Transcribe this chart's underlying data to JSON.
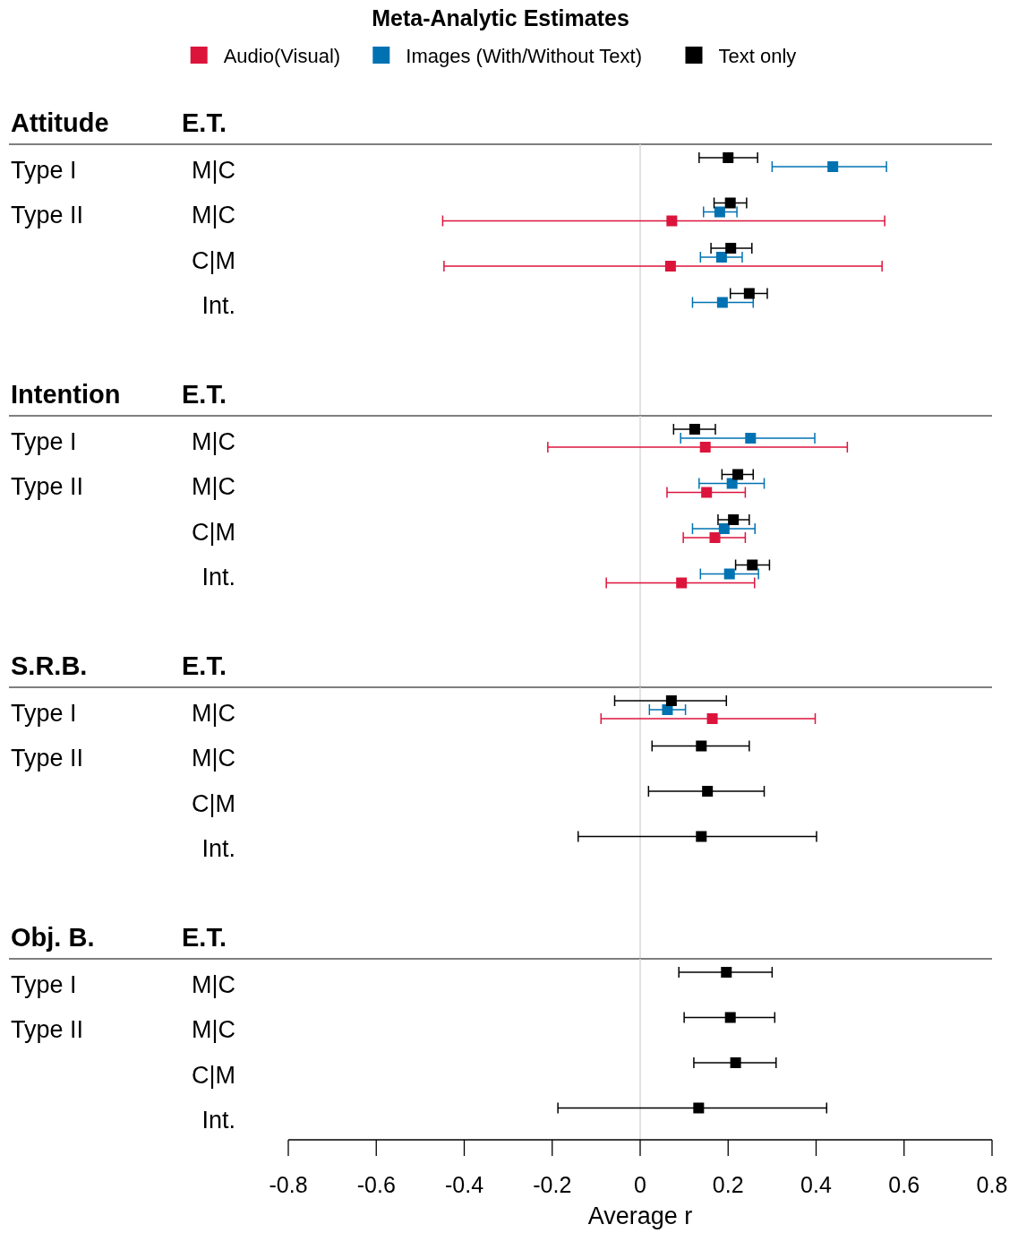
{
  "chart_data": [
    {
      "type": "scatter",
      "orientation": "horizontal",
      "title": "Meta-Analytic Estimates",
      "subtitle": "Attitude",
      "ylabel": "E.T.",
      "legend": "top",
      "marker": "square",
      "categories": [
        "M|C",
        "M|C",
        "C|M",
        "Int."
      ],
      "y2_categories": [
        "Type I",
        "Type II",
        null,
        null
      ],
      "xlim": [
        -0.8,
        0.8
      ],
      "tick_labels": "y",
      "ref_lines": [
        {
          "axis": "x",
          "value": 0,
          "color": "#d9d9d9"
        }
      ],
      "series": [
        {
          "name": "Audio(Visual)",
          "color": "#dc143c",
          "values": [
            null,
            0.072,
            0.069,
            null
          ],
          "errors": [
            null,
            [
              -0.449,
              0.556
            ],
            [
              -0.446,
              0.55
            ],
            null
          ]
        },
        {
          "name": "Images (With/Without Text)",
          "color": "#0072b2",
          "values": [
            0.438,
            0.181,
            0.185,
            0.187
          ],
          "errors": [
            [
              0.3,
              0.56
            ],
            [
              0.144,
              0.22
            ],
            [
              0.137,
              0.232
            ],
            [
              0.119,
              0.257
            ]
          ]
        },
        {
          "name": "Text only",
          "color": "#000000",
          "values": [
            0.2,
            0.205,
            0.206,
            0.248
          ],
          "errors": [
            [
              0.134,
              0.267
            ],
            [
              0.168,
              0.242
            ],
            [
              0.161,
              0.254
            ],
            [
              0.205,
              0.289
            ]
          ]
        }
      ]
    },
    {
      "type": "scatter",
      "orientation": "horizontal",
      "subtitle": "Intention",
      "ylabel": "E.T.",
      "marker": "square",
      "categories": [
        "M|C",
        "M|C",
        "C|M",
        "Int."
      ],
      "y2_categories": [
        "Type I",
        "Type II",
        null,
        null
      ],
      "xlim": [
        -0.8,
        0.8
      ],
      "tick_labels": "y",
      "ref_lines": [
        {
          "axis": "x",
          "value": 0,
          "color": "#d9d9d9"
        }
      ],
      "series": [
        {
          "color": "#dc143c",
          "values": [
            0.148,
            0.151,
            0.17,
            0.094
          ],
          "errors": [
            [
              -0.21,
              0.471
            ],
            [
              0.061,
              0.239
            ],
            [
              0.098,
              0.239
            ],
            [
              -0.077,
              0.26
            ]
          ]
        },
        {
          "color": "#0072b2",
          "values": [
            0.251,
            0.209,
            0.191,
            0.203
          ],
          "errors": [
            [
              0.092,
              0.397
            ],
            [
              0.134,
              0.282
            ],
            [
              0.119,
              0.261
            ],
            [
              0.137,
              0.269
            ]
          ]
        },
        {
          "color": "#000000",
          "values": [
            0.124,
            0.222,
            0.212,
            0.255
          ],
          "errors": [
            [
              0.076,
              0.171
            ],
            [
              0.186,
              0.257
            ],
            [
              0.177,
              0.248
            ],
            [
              0.217,
              0.294
            ]
          ]
        }
      ]
    },
    {
      "type": "scatter",
      "orientation": "horizontal",
      "subtitle": "S.R.B.",
      "ylabel": "E.T.",
      "marker": "square",
      "categories": [
        "M|C",
        "M|C",
        "C|M",
        "Int."
      ],
      "y2_categories": [
        "Type I",
        "Type II",
        null,
        null
      ],
      "xlim": [
        -0.8,
        0.8
      ],
      "tick_labels": "y",
      "ref_lines": [
        {
          "axis": "x",
          "value": 0,
          "color": "#d9d9d9"
        }
      ],
      "series": [
        {
          "color": "#dc143c",
          "values": [
            0.164,
            null,
            null,
            null
          ],
          "errors": [
            [
              -0.089,
              0.398
            ],
            null,
            null,
            null
          ]
        },
        {
          "color": "#0072b2",
          "values": [
            0.062,
            null,
            null,
            null
          ],
          "errors": [
            [
              0.021,
              0.103
            ],
            null,
            null,
            null
          ]
        },
        {
          "color": "#000000",
          "values": [
            0.071,
            0.139,
            0.153,
            0.139
          ],
          "errors": [
            [
              -0.058,
              0.196
            ],
            [
              0.027,
              0.248
            ],
            [
              0.019,
              0.282
            ],
            [
              -0.141,
              0.401
            ]
          ]
        }
      ]
    },
    {
      "type": "scatter",
      "orientation": "horizontal",
      "subtitle": "Obj. B.",
      "ylabel": "E.T.",
      "xlabel": "Average r",
      "marker": "square",
      "categories": [
        "M|C",
        "M|C",
        "C|M",
        "Int."
      ],
      "y2_categories": [
        "Type I",
        "Type II",
        null,
        null
      ],
      "xlim": [
        -0.8,
        0.8
      ],
      "xticks": [
        {
          "value": -0.8,
          "label": "-0.8"
        },
        {
          "value": -0.6,
          "label": "-0.6"
        },
        {
          "value": -0.4,
          "label": "-0.4"
        },
        {
          "value": -0.2,
          "label": "-0.2"
        },
        0,
        {
          "value": 0.2,
          "label": "0.2"
        },
        {
          "value": 0.4,
          "label": "0.4"
        },
        {
          "value": 0.6,
          "label": "0.6"
        },
        {
          "value": 0.8,
          "label": "0.8"
        }
      ],
      "ref_lines": [
        {
          "axis": "x",
          "value": 0,
          "color": "#d9d9d9"
        }
      ],
      "series": [
        {
          "color": "#dc143c",
          "values": [
            null,
            null,
            null,
            null
          ],
          "errors": [
            null,
            null,
            null,
            null
          ]
        },
        {
          "color": "#0072b2",
          "values": [
            null,
            null,
            null,
            null
          ],
          "errors": [
            null,
            null,
            null,
            null
          ]
        },
        {
          "color": "#000000",
          "values": [
            0.196,
            0.205,
            0.217,
            0.133
          ],
          "errors": [
            [
              0.088,
              0.3
            ],
            [
              0.1,
              0.306
            ],
            [
              0.122,
              0.309
            ],
            [
              -0.187,
              0.424
            ]
          ]
        }
      ]
    }
  ]
}
